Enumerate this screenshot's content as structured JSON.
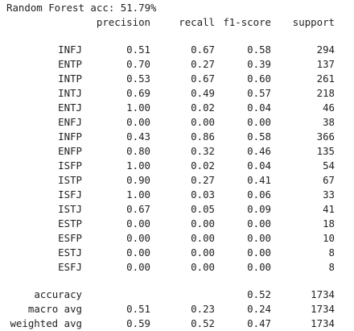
{
  "title": "Random Forest acc: 51.79%",
  "headers": {
    "precision": "precision",
    "recall": "recall",
    "f1": "f1-score",
    "support": "support"
  },
  "rows": [
    {
      "label": "INFJ",
      "precision": "0.51",
      "recall": "0.67",
      "f1": "0.58",
      "support": "294"
    },
    {
      "label": "ENTP",
      "precision": "0.70",
      "recall": "0.27",
      "f1": "0.39",
      "support": "137"
    },
    {
      "label": "INTP",
      "precision": "0.53",
      "recall": "0.67",
      "f1": "0.60",
      "support": "261"
    },
    {
      "label": "INTJ",
      "precision": "0.69",
      "recall": "0.49",
      "f1": "0.57",
      "support": "218"
    },
    {
      "label": "ENTJ",
      "precision": "1.00",
      "recall": "0.02",
      "f1": "0.04",
      "support": "46"
    },
    {
      "label": "ENFJ",
      "precision": "0.00",
      "recall": "0.00",
      "f1": "0.00",
      "support": "38"
    },
    {
      "label": "INFP",
      "precision": "0.43",
      "recall": "0.86",
      "f1": "0.58",
      "support": "366"
    },
    {
      "label": "ENFP",
      "precision": "0.80",
      "recall": "0.32",
      "f1": "0.46",
      "support": "135"
    },
    {
      "label": "ISFP",
      "precision": "1.00",
      "recall": "0.02",
      "f1": "0.04",
      "support": "54"
    },
    {
      "label": "ISTP",
      "precision": "0.90",
      "recall": "0.27",
      "f1": "0.41",
      "support": "67"
    },
    {
      "label": "ISFJ",
      "precision": "1.00",
      "recall": "0.03",
      "f1": "0.06",
      "support": "33"
    },
    {
      "label": "ISTJ",
      "precision": "0.67",
      "recall": "0.05",
      "f1": "0.09",
      "support": "41"
    },
    {
      "label": "ESTP",
      "precision": "0.00",
      "recall": "0.00",
      "f1": "0.00",
      "support": "18"
    },
    {
      "label": "ESFP",
      "precision": "0.00",
      "recall": "0.00",
      "f1": "0.00",
      "support": "10"
    },
    {
      "label": "ESTJ",
      "precision": "0.00",
      "recall": "0.00",
      "f1": "0.00",
      "support": "8"
    },
    {
      "label": "ESFJ",
      "precision": "0.00",
      "recall": "0.00",
      "f1": "0.00",
      "support": "8"
    }
  ],
  "summary": {
    "accuracy": {
      "label": "accuracy",
      "f1": "0.52",
      "support": "1734"
    },
    "macro": {
      "label": "macro avg",
      "precision": "0.51",
      "recall": "0.23",
      "f1": "0.24",
      "support": "1734"
    },
    "weighted": {
      "label": "weighted avg",
      "precision": "0.59",
      "recall": "0.52",
      "f1": "0.47",
      "support": "1734"
    }
  }
}
